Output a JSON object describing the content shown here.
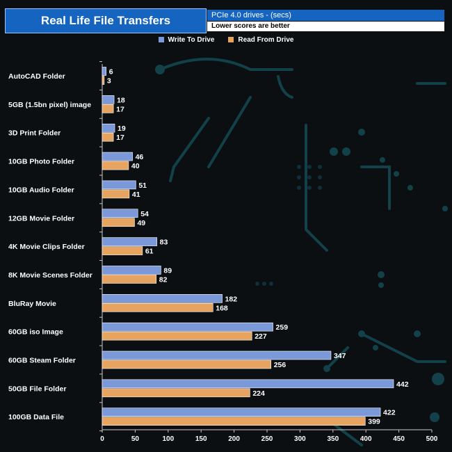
{
  "header": {
    "title": "Real Life File Transfers",
    "subtitle_line1": "PCIe 4.0 drives - (secs)",
    "subtitle_line2": "Lower scores are better"
  },
  "colors": {
    "write": "#7b98d9",
    "read": "#e6a460",
    "title_bg": "#1565c0"
  },
  "chart_data": {
    "type": "bar",
    "orientation": "horizontal",
    "title": "Real Life File Transfers",
    "xlabel": "",
    "ylabel": "",
    "xlim": [
      0,
      500
    ],
    "ticks": [
      0,
      50,
      100,
      150,
      200,
      250,
      300,
      350,
      400,
      450,
      500
    ],
    "legend_position": "top-center",
    "categories": [
      "AutoCAD Folder",
      "5GB (1.5bn pixel) image",
      "3D Print Folder",
      "10GB Photo Folder",
      "10GB Audio Folder",
      "12GB Movie Folder",
      "4K Movie Clips Folder",
      "8K Movie Scenes Folder",
      "BluRay Movie",
      "60GB iso Image",
      "60GB Steam Folder",
      "50GB File Folder",
      "100GB Data File"
    ],
    "series": [
      {
        "name": "Write To  Drive",
        "color": "#7b98d9",
        "values": [
          6,
          18,
          19,
          46,
          51,
          54,
          83,
          89,
          182,
          259,
          347,
          442,
          422
        ]
      },
      {
        "name": "Read From  Drive",
        "color": "#e6a460",
        "values": [
          3,
          17,
          17,
          40,
          41,
          49,
          61,
          82,
          168,
          227,
          256,
          224,
          399
        ]
      }
    ]
  }
}
